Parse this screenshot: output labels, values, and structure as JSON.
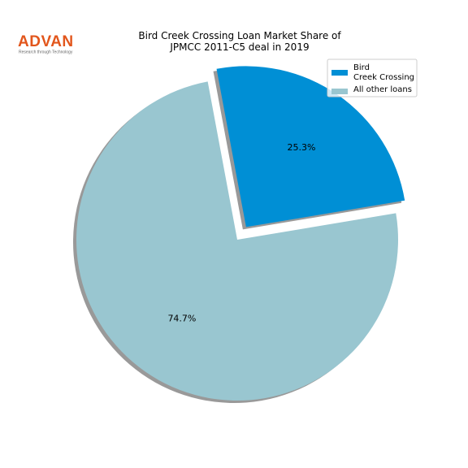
{
  "logo": {
    "text": "ADVAN",
    "tagline": "Research through Technology"
  },
  "chart_data": {
    "type": "pie",
    "title": "Bird Creek Crossing Loan Market Share of\nJPMCC 2011-C5 deal in 2019",
    "categories": [
      "Bird\nCreek Crossing",
      "All other loans"
    ],
    "values": [
      25.3,
      74.7
    ],
    "value_labels": [
      "25.3%",
      "74.7%"
    ],
    "colors": [
      "#008fd5",
      "#99c6d0"
    ],
    "explode": [
      true,
      false
    ],
    "shadow": true,
    "legend": "upper right"
  }
}
